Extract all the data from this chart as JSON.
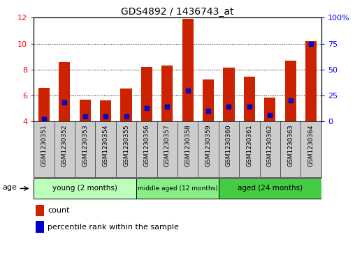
{
  "title": "GDS4892 / 1436743_at",
  "samples": [
    "GSM1230351",
    "GSM1230352",
    "GSM1230353",
    "GSM1230354",
    "GSM1230355",
    "GSM1230356",
    "GSM1230357",
    "GSM1230358",
    "GSM1230359",
    "GSM1230360",
    "GSM1230361",
    "GSM1230362",
    "GSM1230363",
    "GSM1230364"
  ],
  "counts": [
    6.6,
    8.6,
    5.7,
    5.65,
    6.55,
    8.2,
    8.3,
    11.9,
    7.25,
    8.15,
    7.45,
    5.85,
    8.7,
    10.2
  ],
  "percentiles": [
    2,
    18,
    5,
    5,
    5,
    13,
    14,
    30,
    10,
    14,
    14,
    6,
    20,
    75
  ],
  "ylim_left": [
    4,
    12
  ],
  "ylim_right": [
    0,
    100
  ],
  "yticks_left": [
    4,
    6,
    8,
    10,
    12
  ],
  "yticks_right": [
    0,
    25,
    50,
    75,
    100
  ],
  "bar_color": "#cc2200",
  "percentile_color": "#0000cc",
  "groups": [
    {
      "label": "young (2 months)",
      "start": 0,
      "end": 5,
      "color": "#bbffbb"
    },
    {
      "label": "middle aged (12 months)",
      "start": 5,
      "end": 9,
      "color": "#88ee88"
    },
    {
      "label": "aged (24 months)",
      "start": 9,
      "end": 14,
      "color": "#44cc44"
    }
  ],
  "age_label": "age",
  "legend_count": "count",
  "legend_percentile": "percentile rank within the sample",
  "bar_width": 0.55,
  "dot_size": 22,
  "background_color": "#ffffff",
  "tick_bg_color": "#cccccc",
  "grid_yticks": [
    6,
    8,
    10
  ]
}
